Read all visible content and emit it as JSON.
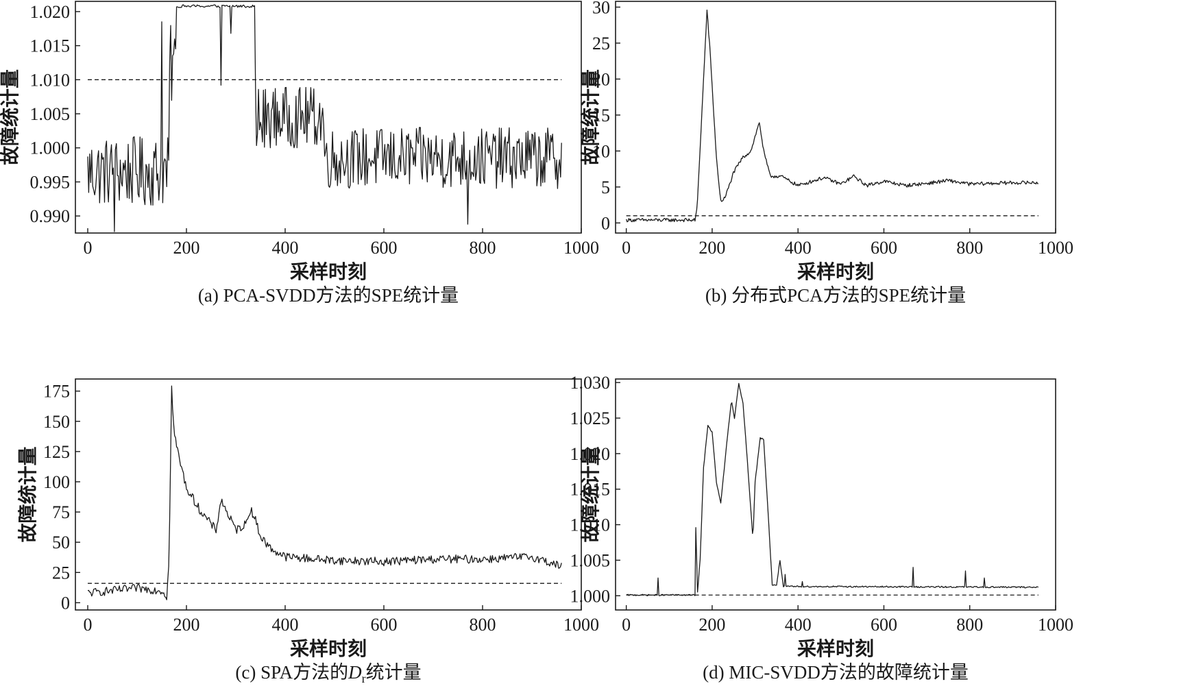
{
  "chart_data": [
    {
      "id": "a",
      "type": "line",
      "caption": "(a) PCA-SVDD方法的SPE统计量",
      "xlabel": "采样时刻",
      "ylabel": "故障统计量",
      "xlim": [
        -25,
        1000
      ],
      "ylim": [
        0.9875,
        1.0215
      ],
      "xticks": [
        0,
        200,
        400,
        600,
        800,
        1000
      ],
      "yticks": [
        0.99,
        0.995,
        1.0,
        1.005,
        1.01,
        1.015,
        1.02
      ],
      "ytick_labels": [
        "0.990",
        "0.995",
        "1.000",
        "1.005",
        "1.010",
        "1.015",
        "1.020"
      ],
      "threshold": {
        "value": 1.01,
        "x_range": [
          0,
          960
        ],
        "style": "dashed"
      },
      "series": [
        {
          "name": "SPE",
          "x_range": [
            0,
            960
          ],
          "regimes": [
            {
              "x": [
                0,
                165
              ],
              "level": 0.9965,
              "noise": 0.0052
            },
            {
              "x": [
                165,
                180
              ],
              "level": 1.012,
              "noise": 0.006
            },
            {
              "x": [
                180,
                340
              ],
              "level": 1.0208,
              "noise": 0.0004
            },
            {
              "x": [
                340,
                360
              ],
              "level": 1.0035,
              "noise": 0.006
            },
            {
              "x": [
                360,
                480
              ],
              "level": 1.0045,
              "noise": 0.0045
            },
            {
              "x": [
                480,
                960
              ],
              "level": 0.9985,
              "noise": 0.0045
            }
          ],
          "points": [
            [
              270,
              1.0092
            ],
            [
              290,
              1.0168
            ],
            [
              55,
              0.9877
            ],
            [
              770,
              0.9888
            ],
            [
              150,
              1.0185
            ]
          ]
        }
      ]
    },
    {
      "id": "b",
      "type": "line",
      "caption": "(b) 分布式PCA方法的SPE统计量",
      "xlabel": "采样时刻",
      "ylabel": "故障统计量",
      "xlim": [
        -25,
        1000
      ],
      "ylim": [
        -1.4,
        30.8
      ],
      "xticks": [
        0,
        200,
        400,
        600,
        800,
        1000
      ],
      "yticks": [
        0,
        5,
        10,
        15,
        20,
        25,
        30
      ],
      "ytick_labels": [
        "0",
        "5",
        "10",
        "15",
        "20",
        "25",
        "30"
      ],
      "threshold": {
        "value": 1.0,
        "x_range": [
          0,
          960
        ],
        "style": "dashed"
      },
      "series": [
        {
          "name": "SPE",
          "x_range": [
            0,
            960
          ],
          "keypoints": [
            [
              0,
              0.4
            ],
            [
              160,
              0.4
            ],
            [
              165,
              2
            ],
            [
              170,
              8
            ],
            [
              180,
              20
            ],
            [
              188,
              29.6
            ],
            [
              195,
              24
            ],
            [
              200,
              19
            ],
            [
              210,
              9
            ],
            [
              220,
              3
            ],
            [
              230,
              3.5
            ],
            [
              250,
              7
            ],
            [
              270,
              9
            ],
            [
              290,
              10
            ],
            [
              310,
              14
            ],
            [
              320,
              10
            ],
            [
              335,
              6.5
            ],
            [
              360,
              6.5
            ],
            [
              400,
              5.2
            ],
            [
              460,
              6.3
            ],
            [
              500,
              5.4
            ],
            [
              530,
              6.5
            ],
            [
              560,
              5.2
            ],
            [
              600,
              5.8
            ],
            [
              650,
              5.2
            ],
            [
              700,
              5.5
            ],
            [
              750,
              5.9
            ],
            [
              800,
              5.4
            ],
            [
              900,
              5.6
            ],
            [
              960,
              5.6
            ]
          ],
          "noise": 0.25,
          "low_noise": 0.25
        }
      ]
    },
    {
      "id": "c",
      "type": "line",
      "caption": "(c) SPA方法的",
      "caption_symbol": "D",
      "caption_subscript": "r",
      "caption_suffix": "统计量",
      "xlabel": "采样时刻",
      "ylabel": "故障统计量",
      "xlim": [
        -25,
        1000
      ],
      "ylim": [
        -6,
        185
      ],
      "xticks": [
        0,
        200,
        400,
        600,
        800,
        1000
      ],
      "yticks": [
        0,
        25,
        50,
        75,
        100,
        125,
        150,
        175
      ],
      "ytick_labels": [
        "0",
        "25",
        "50",
        "75",
        "100",
        "125",
        "150",
        "175"
      ],
      "threshold": {
        "value": 16,
        "x_range": [
          0,
          960
        ],
        "style": "dashed"
      },
      "series": [
        {
          "name": "Dr",
          "x_range": [
            0,
            960
          ],
          "keypoints": [
            [
              0,
              8
            ],
            [
              100,
              12
            ],
            [
              150,
              10
            ],
            [
              160,
              5
            ],
            [
              165,
              40
            ],
            [
              170,
              178
            ],
            [
              175,
              140
            ],
            [
              185,
              120
            ],
            [
              200,
              95
            ],
            [
              230,
              75
            ],
            [
              260,
              60
            ],
            [
              270,
              85
            ],
            [
              300,
              60
            ],
            [
              320,
              65
            ],
            [
              330,
              78
            ],
            [
              340,
              68
            ],
            [
              350,
              55
            ],
            [
              370,
              45
            ],
            [
              400,
              38
            ],
            [
              500,
              35
            ],
            [
              600,
              34
            ],
            [
              700,
              36
            ],
            [
              800,
              36
            ],
            [
              900,
              38
            ],
            [
              960,
              30
            ]
          ],
          "noise": 3.5
        }
      ]
    },
    {
      "id": "d",
      "type": "line",
      "caption": "(d) MIC-SVDD方法的故障统计量",
      "xlabel": "采样时刻",
      "ylabel": "故障统计量",
      "xlim": [
        -25,
        1000
      ],
      "ylim": [
        0.998,
        1.0305
      ],
      "xticks": [
        0,
        200,
        400,
        600,
        800,
        1000
      ],
      "yticks": [
        1.0,
        1.005,
        1.01,
        1.015,
        1.02,
        1.025,
        1.03
      ],
      "ytick_labels": [
        "1.000",
        "1.005",
        "1.010",
        "1.015",
        "1.020",
        "1.025",
        "1.030"
      ],
      "threshold": {
        "value": 1.0001,
        "x_range": [
          0,
          960
        ],
        "style": "dashed"
      },
      "series": [
        {
          "name": "MIC-SVDD",
          "x_range": [
            0,
            960
          ],
          "keypoints": [
            [
              0,
              1.0001
            ],
            [
              160,
              1.0001
            ],
            [
              162,
              1.0095
            ],
            [
              166,
              1.0005
            ],
            [
              172,
              1.005
            ],
            [
              180,
              1.018
            ],
            [
              190,
              1.024
            ],
            [
              200,
              1.023
            ],
            [
              210,
              1.016
            ],
            [
              220,
              1.013
            ],
            [
              235,
              1.022
            ],
            [
              245,
              1.0275
            ],
            [
              252,
              1.025
            ],
            [
              262,
              1.0298
            ],
            [
              272,
              1.027
            ],
            [
              282,
              1.019
            ],
            [
              295,
              1.008
            ],
            [
              300,
              1.016
            ],
            [
              312,
              1.0222
            ],
            [
              320,
              1.022
            ],
            [
              330,
              1.012
            ],
            [
              340,
              1.0015
            ],
            [
              350,
              1.0015
            ],
            [
              358,
              1.005
            ],
            [
              366,
              1.0013
            ],
            [
              400,
              1.0013
            ],
            [
              960,
              1.0012
            ]
          ],
          "noise": 0.0001,
          "spikes": [
            [
              75,
              1.0025
            ],
            [
              668,
              1.004
            ],
            [
              790,
              1.0035
            ],
            [
              835,
              1.0025
            ],
            [
              370,
              1.003
            ],
            [
              410,
              1.002
            ]
          ]
        }
      ]
    }
  ]
}
